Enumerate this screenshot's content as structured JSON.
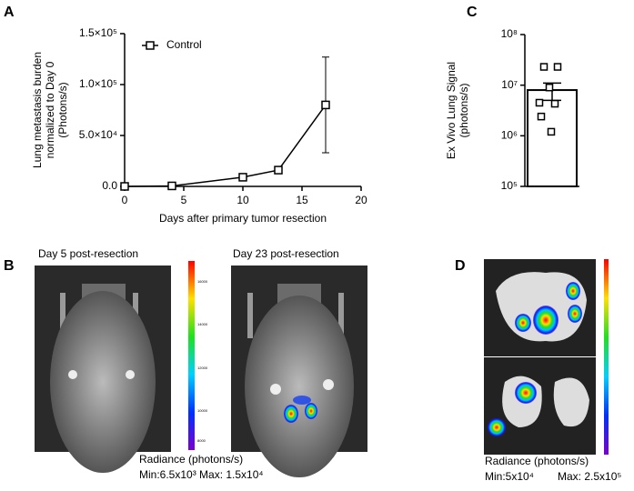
{
  "chart_data": [
    {
      "type": "line",
      "panel": "A",
      "y_label": [
        "Lung metastasis burden",
        "normalized to Day 0",
        "(Photons/s)"
      ],
      "x_label": "Days after primary tumor resection",
      "x": [
        0,
        4,
        10,
        13,
        17
      ],
      "series": [
        {
          "name": "Control",
          "color": "#000000",
          "values": [
            0,
            500,
            9000,
            16000,
            80000
          ],
          "errors": [
            null,
            null,
            null,
            null,
            47000
          ]
        }
      ],
      "xlim": [
        0,
        20
      ],
      "xticks": [
        0,
        5,
        10,
        15,
        20
      ],
      "ylim": [
        0,
        150000
      ],
      "yticks": [
        {
          "value": 0,
          "label": "0.0"
        },
        {
          "value": 50000,
          "label": "5.0×10⁴"
        },
        {
          "value": 100000,
          "label": "1.0×10⁵"
        },
        {
          "value": 150000,
          "label": "1.5×10⁵"
        }
      ],
      "legend": "top-left"
    },
    {
      "type": "bar",
      "panel": "C",
      "y_label": [
        "Ex Vivo Lung Signal",
        "(photons/s)"
      ],
      "categories": [
        null
      ],
      "values": [
        8000000
      ],
      "errors": [
        3000000
      ],
      "color": "#ffffff",
      "points": [
        23000000,
        23000000,
        9000000,
        4500000,
        4300000,
        2400000,
        1200000
      ],
      "log_scale": true,
      "ylim": [
        100000,
        100000000
      ],
      "yticks": [
        {
          "value": 100000,
          "label": "10⁵"
        },
        {
          "value": 1000000,
          "label": "10⁶"
        },
        {
          "value": 10000000,
          "label": "10⁷"
        },
        {
          "value": 100000000,
          "label": "10⁸"
        }
      ]
    }
  ],
  "panels": {
    "B": {
      "letter": "B",
      "left_title": "Day 5 post-resection",
      "right_title": "Day 23 post-resection",
      "colorbar_labels": [
        "16000",
        "14000",
        "12000",
        "10000",
        "8000"
      ],
      "radiance": "Radiance (photons/s)",
      "range": "Min:6.5x10³ Max: 1.5x10⁴"
    },
    "D": {
      "letter": "D",
      "radiance": "Radiance (photons/s)",
      "min": "Min:5x10⁴",
      "max": "Max: 2.5x10⁵"
    }
  }
}
